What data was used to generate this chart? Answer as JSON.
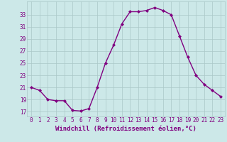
{
  "x": [
    0,
    1,
    2,
    3,
    4,
    5,
    6,
    7,
    8,
    9,
    10,
    11,
    12,
    13,
    14,
    15,
    16,
    17,
    18,
    19,
    20,
    21,
    22,
    23
  ],
  "y": [
    21.0,
    20.5,
    19.0,
    18.8,
    18.8,
    17.2,
    17.1,
    17.5,
    21.0,
    25.0,
    28.0,
    31.5,
    33.5,
    33.5,
    33.7,
    34.2,
    33.7,
    33.0,
    29.5,
    26.0,
    23.0,
    21.5,
    20.5,
    19.5
  ],
  "line_color": "#800080",
  "marker": "D",
  "marker_size": 2.0,
  "bg_color": "#cce8e8",
  "grid_color": "#aac8c8",
  "xlabel": "Windchill (Refroidissement éolien,°C)",
  "yticks": [
    17,
    19,
    21,
    23,
    25,
    27,
    29,
    31,
    33
  ],
  "xtick_labels": [
    "0",
    "1",
    "2",
    "3",
    "4",
    "5",
    "6",
    "7",
    "8",
    "9",
    "10",
    "11",
    "12",
    "13",
    "14",
    "15",
    "16",
    "17",
    "18",
    "19",
    "20",
    "21",
    "22",
    "23"
  ],
  "xticks": [
    0,
    1,
    2,
    3,
    4,
    5,
    6,
    7,
    8,
    9,
    10,
    11,
    12,
    13,
    14,
    15,
    16,
    17,
    18,
    19,
    20,
    21,
    22,
    23
  ],
  "ylim": [
    16.2,
    35.2
  ],
  "xlim": [
    -0.5,
    23.5
  ],
  "tick_color": "#800080",
  "label_color": "#800080",
  "tick_fontsize": 5.5,
  "xlabel_fontsize": 6.5,
  "linewidth": 1.0
}
